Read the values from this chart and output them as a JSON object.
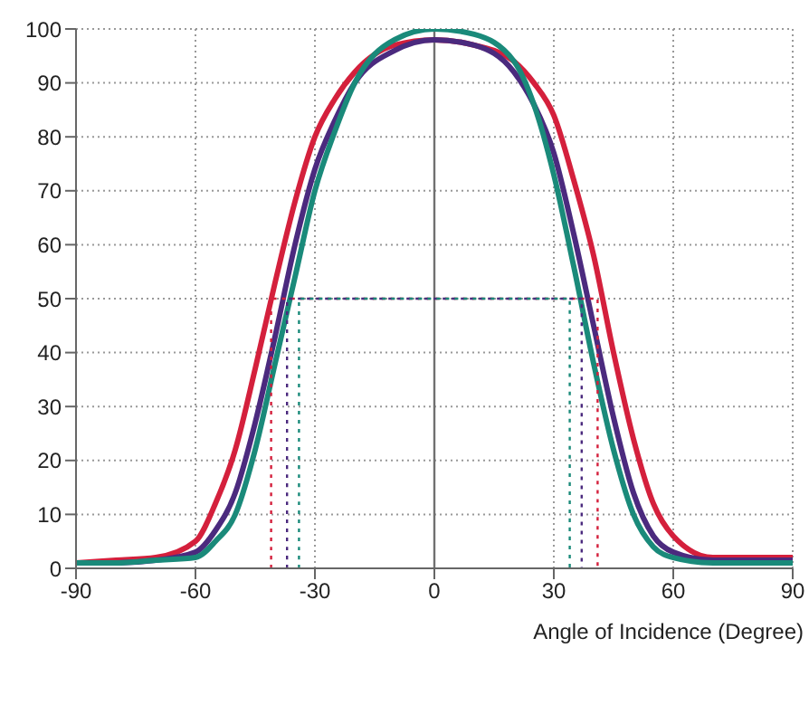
{
  "chart_data": {
    "type": "line",
    "xlabel": "Angle of Incidence (Degree)",
    "x": [
      -90,
      -80,
      -70,
      -60,
      -55,
      -50,
      -45,
      -40,
      -35,
      -30,
      -25,
      -20,
      -10,
      0,
      10,
      20,
      25,
      30,
      35,
      40,
      45,
      50,
      55,
      60,
      70,
      80,
      90
    ],
    "series": [
      {
        "color": "#d4203c",
        "values": [
          1,
          1.5,
          2,
          5,
          12,
          22,
          37,
          53,
          68,
          80,
          87,
          92,
          97,
          98,
          97,
          94,
          90,
          84,
          72,
          58,
          40,
          24,
          12,
          6,
          2,
          2,
          2
        ]
      },
      {
        "color": "#4b2a7e",
        "values": [
          1,
          1,
          1.5,
          3,
          7,
          14,
          27,
          43,
          60,
          74,
          83,
          90,
          96,
          98,
          97,
          92,
          86,
          77,
          62,
          45,
          28,
          14,
          6,
          3,
          1.5,
          1.5,
          1.5
        ]
      },
      {
        "color": "#1a8a7a",
        "values": [
          1,
          1,
          1.5,
          2,
          5,
          10,
          22,
          38,
          54,
          70,
          81,
          90,
          98,
          100,
          99,
          94,
          86,
          73,
          56,
          38,
          22,
          10,
          4,
          2,
          1,
          1,
          1
        ]
      },
      {
        "color": "#d4203c",
        "line_style": "dotted",
        "x": [
          -41,
          -41,
          41,
          41
        ],
        "values": [
          0,
          50,
          50,
          0
        ]
      },
      {
        "color": "#4b2a7e",
        "line_style": "dotted",
        "x": [
          -37,
          -37,
          37,
          37
        ],
        "values": [
          0,
          50,
          50,
          0
        ]
      },
      {
        "color": "#1a8a7a",
        "line_style": "dotted",
        "x": [
          -34,
          -34,
          34,
          34
        ],
        "values": [
          0,
          50,
          50,
          0
        ]
      }
    ],
    "xlim": [
      -90,
      90
    ],
    "xticks": [
      -90,
      -60,
      -30,
      0,
      30,
      60,
      90
    ],
    "ylim": [
      0,
      100
    ],
    "yticks": [
      0,
      10,
      20,
      30,
      40,
      50,
      60,
      70,
      80,
      90,
      100
    ],
    "grid": true,
    "marker": "none",
    "line_style": "solid",
    "ref_lines": [
      {
        "axis": "x",
        "value": 0,
        "color": "#707070"
      }
    ]
  }
}
